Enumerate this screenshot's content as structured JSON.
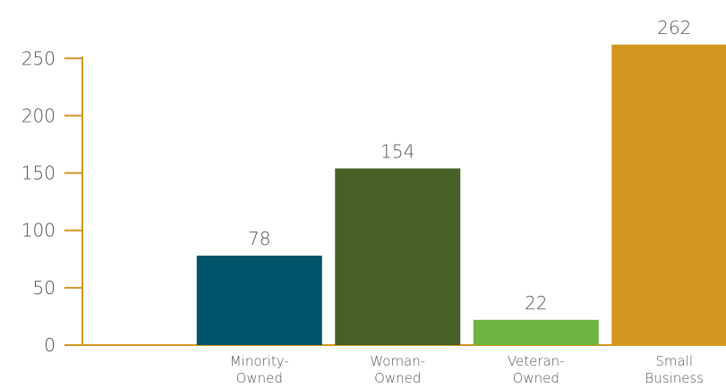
{
  "chart_data": {
    "type": "bar",
    "categories": [
      "",
      "Minority-Owned",
      "Woman-Owned",
      "Veteran-Owned",
      "Small Business"
    ],
    "category_lines": [
      [],
      [
        "Minority-",
        "Owned"
      ],
      [
        "Woman-",
        "Owned"
      ],
      [
        "Veteran-",
        "Owned"
      ],
      [
        "Small",
        "Business"
      ]
    ],
    "values": [
      null,
      78,
      154,
      22,
      262
    ],
    "data_labels": [
      "",
      "78",
      "154",
      "22",
      "262"
    ],
    "bar_colors": [
      null,
      "#005469",
      "#466028",
      "#6db33f",
      "#d39620"
    ],
    "axis_color": "#d39620",
    "y_ticks": [
      0,
      50,
      100,
      150,
      200,
      250
    ],
    "ylim": [
      0,
      262
    ],
    "title": "",
    "xlabel": "",
    "ylabel": "",
    "grid": false,
    "legend": "none"
  }
}
